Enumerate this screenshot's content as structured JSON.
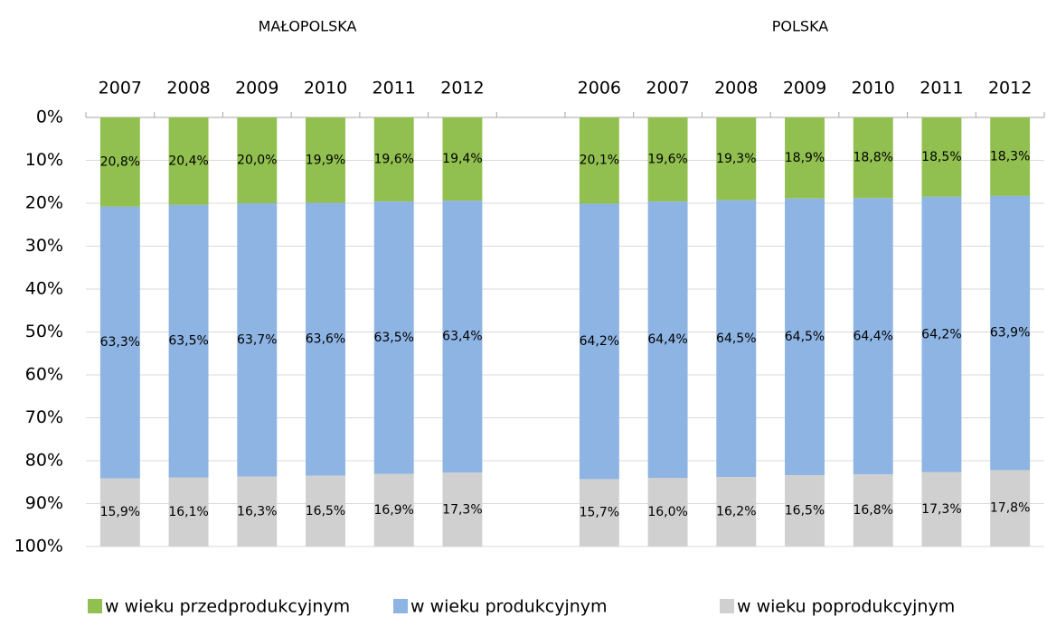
{
  "chart_data": {
    "type": "stacked_bar",
    "group_labels": [
      "MAŁOPOLSKA",
      "POLSKA"
    ],
    "categories": [
      "2007",
      "2008",
      "2009",
      "2010",
      "2011",
      "2012",
      null,
      "2006",
      "2007",
      "2008",
      "2009",
      "2010",
      "2011",
      "2012"
    ],
    "series": [
      {
        "name": "w wieku przedprodukcyjnym",
        "color": "#92c050",
        "values": [
          20.8,
          20.4,
          20.0,
          19.9,
          19.6,
          19.4,
          null,
          20.1,
          19.6,
          19.3,
          18.9,
          18.8,
          18.5,
          18.3
        ],
        "value_labels": [
          "20,8%",
          "20,4%",
          "20,0%",
          "19,9%",
          "19,6%",
          "19,4%",
          null,
          "20,1%",
          "19,6%",
          "19,3%",
          "18,9%",
          "18,8%",
          "18,5%",
          "18,3%"
        ]
      },
      {
        "name": "w wieku produkcyjnym",
        "color": "#8eb4e3",
        "values": [
          63.3,
          63.5,
          63.7,
          63.6,
          63.5,
          63.4,
          null,
          64.2,
          64.4,
          64.5,
          64.5,
          64.4,
          64.2,
          63.9
        ],
        "value_labels": [
          "63,3%",
          "63,5%",
          "63,7%",
          "63,6%",
          "63,5%",
          "63,4%",
          null,
          "64,2%",
          "64,4%",
          "64,5%",
          "64,5%",
          "64,4%",
          "64,2%",
          "63,9%"
        ]
      },
      {
        "name": "w wieku poprodukcyjnym",
        "color": "#d0d0d0",
        "values": [
          15.9,
          16.1,
          16.3,
          16.5,
          16.9,
          17.3,
          null,
          15.7,
          16.0,
          16.2,
          16.5,
          16.8,
          17.3,
          17.8
        ],
        "value_labels": [
          "15,9%",
          "16,1%",
          "16,3%",
          "16,5%",
          "16,9%",
          "17,3%",
          null,
          "15,7%",
          "16,0%",
          "16,2%",
          "16,5%",
          "16,8%",
          "17,3%",
          "17,8%"
        ]
      }
    ],
    "ylim": [
      0,
      100
    ],
    "y_inverted": true,
    "yticks": [
      {
        "value": 0,
        "label": "0%"
      },
      {
        "value": 10,
        "label": "10%"
      },
      {
        "value": 20,
        "label": "20%"
      },
      {
        "value": 30,
        "label": "30%"
      },
      {
        "value": 40,
        "label": "40%"
      },
      {
        "value": 50,
        "label": "50%"
      },
      {
        "value": 60,
        "label": "60%"
      },
      {
        "value": 70,
        "label": "70%"
      },
      {
        "value": 80,
        "label": "80%"
      },
      {
        "value": 90,
        "label": "90%"
      },
      {
        "value": 100,
        "label": "100%"
      }
    ],
    "grid": true,
    "legend": "bottom"
  }
}
